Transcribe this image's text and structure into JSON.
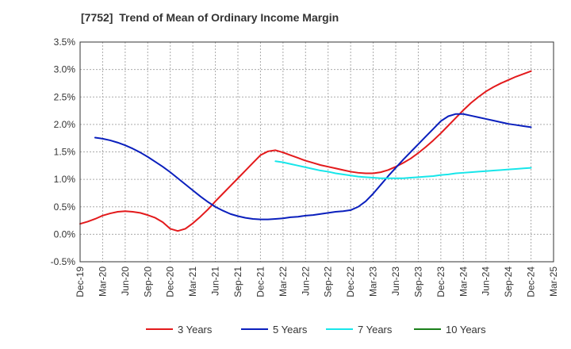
{
  "chart_data": {
    "type": "line",
    "title": "[7752]  Trend of Mean of Ordinary Income Margin",
    "xlabel": "",
    "ylabel": "",
    "x_ticks": [
      "Dec-19",
      "Mar-20",
      "Jun-20",
      "Sep-20",
      "Dec-20",
      "Mar-21",
      "Jun-21",
      "Sep-21",
      "Dec-21",
      "Mar-22",
      "Jun-22",
      "Sep-22",
      "Dec-22",
      "Mar-23",
      "Jun-23",
      "Sep-23",
      "Dec-23",
      "Mar-24",
      "Jun-24",
      "Sep-24",
      "Dec-24",
      "Mar-25"
    ],
    "y_ticks": [
      "-0.5%",
      "0.0%",
      "0.5%",
      "1.0%",
      "1.5%",
      "2.0%",
      "2.5%",
      "3.0%",
      "3.5%"
    ],
    "ylim": [
      -0.5,
      3.5
    ],
    "grid": true,
    "legend_position": "bottom",
    "series": [
      {
        "name": "3 Years",
        "color": "#e31a1c",
        "points": [
          [
            "Dec-19",
            0.19
          ],
          [
            "Jan-20",
            0.23
          ],
          [
            "Feb-20",
            0.28
          ],
          [
            "Mar-20",
            0.34
          ],
          [
            "Apr-20",
            0.38
          ],
          [
            "May-20",
            0.41
          ],
          [
            "Jun-20",
            0.42
          ],
          [
            "Jul-20",
            0.41
          ],
          [
            "Aug-20",
            0.39
          ],
          [
            "Sep-20",
            0.35
          ],
          [
            "Oct-20",
            0.3
          ],
          [
            "Nov-20",
            0.22
          ],
          [
            "Dec-20",
            0.1
          ],
          [
            "Jan-21",
            0.06
          ],
          [
            "Feb-21",
            0.1
          ],
          [
            "Mar-21",
            0.2
          ],
          [
            "Apr-21",
            0.32
          ],
          [
            "May-21",
            0.45
          ],
          [
            "Jun-21",
            0.6
          ],
          [
            "Jul-21",
            0.74
          ],
          [
            "Aug-21",
            0.88
          ],
          [
            "Sep-21",
            1.02
          ],
          [
            "Oct-21",
            1.16
          ],
          [
            "Nov-21",
            1.3
          ],
          [
            "Dec-21",
            1.44
          ],
          [
            "Jan-22",
            1.51
          ],
          [
            "Feb-22",
            1.53
          ],
          [
            "Mar-22",
            1.49
          ],
          [
            "Apr-22",
            1.44
          ],
          [
            "May-22",
            1.39
          ],
          [
            "Jun-22",
            1.34
          ],
          [
            "Jul-22",
            1.3
          ],
          [
            "Aug-22",
            1.26
          ],
          [
            "Sep-22",
            1.23
          ],
          [
            "Oct-22",
            1.2
          ],
          [
            "Nov-22",
            1.17
          ],
          [
            "Dec-22",
            1.14
          ],
          [
            "Jan-23",
            1.12
          ],
          [
            "Feb-23",
            1.11
          ],
          [
            "Mar-23",
            1.11
          ],
          [
            "Apr-23",
            1.13
          ],
          [
            "May-23",
            1.17
          ],
          [
            "Jun-23",
            1.23
          ],
          [
            "Jul-23",
            1.3
          ],
          [
            "Aug-23",
            1.38
          ],
          [
            "Sep-23",
            1.48
          ],
          [
            "Oct-23",
            1.59
          ],
          [
            "Nov-23",
            1.71
          ],
          [
            "Dec-23",
            1.84
          ],
          [
            "Jan-24",
            1.98
          ],
          [
            "Feb-24",
            2.12
          ],
          [
            "Mar-24",
            2.26
          ],
          [
            "Apr-24",
            2.39
          ],
          [
            "May-24",
            2.5
          ],
          [
            "Jun-24",
            2.6
          ],
          [
            "Jul-24",
            2.68
          ],
          [
            "Aug-24",
            2.75
          ],
          [
            "Sep-24",
            2.81
          ],
          [
            "Oct-24",
            2.87
          ],
          [
            "Nov-24",
            2.92
          ],
          [
            "Dec-24",
            2.97
          ]
        ]
      },
      {
        "name": "5 Years",
        "color": "#0a1fbd",
        "points": [
          [
            "Feb-20",
            1.76
          ],
          [
            "Mar-20",
            1.74
          ],
          [
            "Apr-20",
            1.71
          ],
          [
            "May-20",
            1.67
          ],
          [
            "Jun-20",
            1.62
          ],
          [
            "Jul-20",
            1.56
          ],
          [
            "Aug-20",
            1.49
          ],
          [
            "Sep-20",
            1.41
          ],
          [
            "Oct-20",
            1.32
          ],
          [
            "Nov-20",
            1.23
          ],
          [
            "Dec-20",
            1.13
          ],
          [
            "Jan-21",
            1.02
          ],
          [
            "Feb-21",
            0.91
          ],
          [
            "Mar-21",
            0.8
          ],
          [
            "Apr-21",
            0.69
          ],
          [
            "May-21",
            0.59
          ],
          [
            "Jun-21",
            0.5
          ],
          [
            "Jul-21",
            0.43
          ],
          [
            "Aug-21",
            0.37
          ],
          [
            "Sep-21",
            0.33
          ],
          [
            "Oct-21",
            0.3
          ],
          [
            "Nov-21",
            0.28
          ],
          [
            "Dec-21",
            0.27
          ],
          [
            "Jan-22",
            0.27
          ],
          [
            "Feb-22",
            0.28
          ],
          [
            "Mar-22",
            0.29
          ],
          [
            "Apr-22",
            0.31
          ],
          [
            "May-22",
            0.32
          ],
          [
            "Jun-22",
            0.34
          ],
          [
            "Jul-22",
            0.35
          ],
          [
            "Aug-22",
            0.37
          ],
          [
            "Sep-22",
            0.39
          ],
          [
            "Oct-22",
            0.41
          ],
          [
            "Nov-22",
            0.42
          ],
          [
            "Dec-22",
            0.44
          ],
          [
            "Jan-23",
            0.5
          ],
          [
            "Feb-23",
            0.6
          ],
          [
            "Mar-23",
            0.74
          ],
          [
            "Apr-23",
            0.9
          ],
          [
            "May-23",
            1.06
          ],
          [
            "Jun-23",
            1.21
          ],
          [
            "Jul-23",
            1.36
          ],
          [
            "Aug-23",
            1.5
          ],
          [
            "Sep-23",
            1.64
          ],
          [
            "Oct-23",
            1.78
          ],
          [
            "Nov-23",
            1.92
          ],
          [
            "Dec-23",
            2.06
          ],
          [
            "Jan-24",
            2.15
          ],
          [
            "Feb-24",
            2.19
          ],
          [
            "Mar-24",
            2.19
          ],
          [
            "Apr-24",
            2.16
          ],
          [
            "May-24",
            2.13
          ],
          [
            "Jun-24",
            2.1
          ],
          [
            "Jul-24",
            2.07
          ],
          [
            "Aug-24",
            2.04
          ],
          [
            "Sep-24",
            2.01
          ],
          [
            "Oct-24",
            1.99
          ],
          [
            "Nov-24",
            1.97
          ],
          [
            "Dec-24",
            1.95
          ]
        ]
      },
      {
        "name": "7 Years",
        "color": "#17e6ea",
        "points": [
          [
            "Feb-22",
            1.33
          ],
          [
            "Mar-22",
            1.31
          ],
          [
            "Apr-22",
            1.28
          ],
          [
            "May-22",
            1.25
          ],
          [
            "Jun-22",
            1.22
          ],
          [
            "Jul-22",
            1.19
          ],
          [
            "Aug-22",
            1.16
          ],
          [
            "Sep-22",
            1.14
          ],
          [
            "Oct-22",
            1.11
          ],
          [
            "Nov-22",
            1.09
          ],
          [
            "Dec-22",
            1.07
          ],
          [
            "Jan-23",
            1.05
          ],
          [
            "Feb-23",
            1.04
          ],
          [
            "Mar-23",
            1.03
          ],
          [
            "Apr-23",
            1.02
          ],
          [
            "May-23",
            1.02
          ],
          [
            "Jun-23",
            1.02
          ],
          [
            "Jul-23",
            1.02
          ],
          [
            "Aug-23",
            1.03
          ],
          [
            "Sep-23",
            1.04
          ],
          [
            "Oct-23",
            1.05
          ],
          [
            "Nov-23",
            1.06
          ],
          [
            "Dec-23",
            1.08
          ],
          [
            "Jan-24",
            1.09
          ],
          [
            "Feb-24",
            1.11
          ],
          [
            "Mar-24",
            1.12
          ],
          [
            "Apr-24",
            1.13
          ],
          [
            "May-24",
            1.14
          ],
          [
            "Jun-24",
            1.15
          ],
          [
            "Jul-24",
            1.16
          ],
          [
            "Aug-24",
            1.17
          ],
          [
            "Sep-24",
            1.18
          ],
          [
            "Oct-24",
            1.19
          ],
          [
            "Nov-24",
            1.2
          ],
          [
            "Dec-24",
            1.21
          ]
        ]
      },
      {
        "name": "10 Years",
        "color": "#1a7f1a",
        "points": []
      }
    ]
  }
}
